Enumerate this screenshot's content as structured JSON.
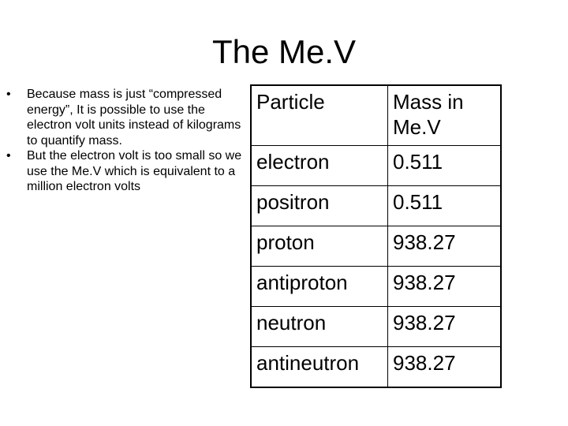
{
  "slide": {
    "title": "The Me.V"
  },
  "bullets": [
    {
      "mark": "•",
      "text": "Because mass is just “compressed energy”, It is possible to use the electron volt units instead of kilograms to quantify mass."
    },
    {
      "mark": "•",
      "text": "But the electron volt is too small so we use the Me.V which is equivalent to a million electron volts"
    }
  ],
  "table": {
    "headers": [
      "Particle",
      "Mass in Me.V"
    ],
    "rows": [
      [
        "electron",
        "0.511"
      ],
      [
        "positron",
        "0.511"
      ],
      [
        "proton",
        "938.27"
      ],
      [
        "antiproton",
        "938.27"
      ],
      [
        "neutron",
        "938.27"
      ],
      [
        "antineutron",
        "938.27"
      ]
    ]
  }
}
